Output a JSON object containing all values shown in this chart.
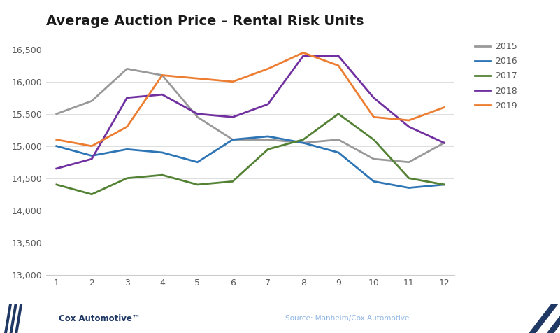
{
  "title": "Average Auction Price – Rental Risk Units",
  "series": {
    "2015": {
      "color": "#999999",
      "values": [
        15500,
        15700,
        16200,
        16100,
        15450,
        15100,
        15100,
        15050,
        15100,
        14800,
        14750,
        15050
      ]
    },
    "2016": {
      "color": "#2E75B6",
      "values": [
        15000,
        14850,
        14950,
        14900,
        14750,
        15100,
        15150,
        15050,
        14900,
        14450,
        14350,
        14400
      ]
    },
    "2017": {
      "color": "#548235",
      "values": [
        14400,
        14250,
        14500,
        14550,
        14400,
        14450,
        14950,
        15100,
        15500,
        15100,
        14500,
        14400
      ]
    },
    "2018": {
      "color": "#7030A0",
      "values": [
        14650,
        14800,
        15750,
        15800,
        15500,
        15450,
        15650,
        16400,
        16400,
        15750,
        15300,
        15050
      ]
    },
    "2019": {
      "color": "#ED7D31",
      "values": [
        15100,
        15000,
        15300,
        16100,
        16050,
        16000,
        16200,
        16450,
        16250,
        15450,
        15400,
        15600
      ]
    }
  },
  "x_ticks": [
    1,
    2,
    3,
    4,
    5,
    6,
    7,
    8,
    9,
    10,
    11,
    12
  ],
  "ylim": [
    13000,
    16700
  ],
  "y_ticks": [
    13000,
    13500,
    14000,
    14500,
    15000,
    15500,
    16000,
    16500
  ],
  "bg": "#FFFFFF",
  "navy": "#1F3864",
  "light_gray": "#C0C0C0",
  "mid_gray": "#8C8C8C",
  "source_text": "Source: Manheim/Cox Automotive",
  "cox_text": "Cox Automotive™",
  "title_fontsize": 14,
  "tick_fontsize": 9,
  "legend_fontsize": 9,
  "line_width": 2.0,
  "footer_stripe_color": "#FFFFFF",
  "cox_text_color": "#FFFFFF",
  "cox_label_color": "#4472C4",
  "source_text_color": "#4472C4"
}
